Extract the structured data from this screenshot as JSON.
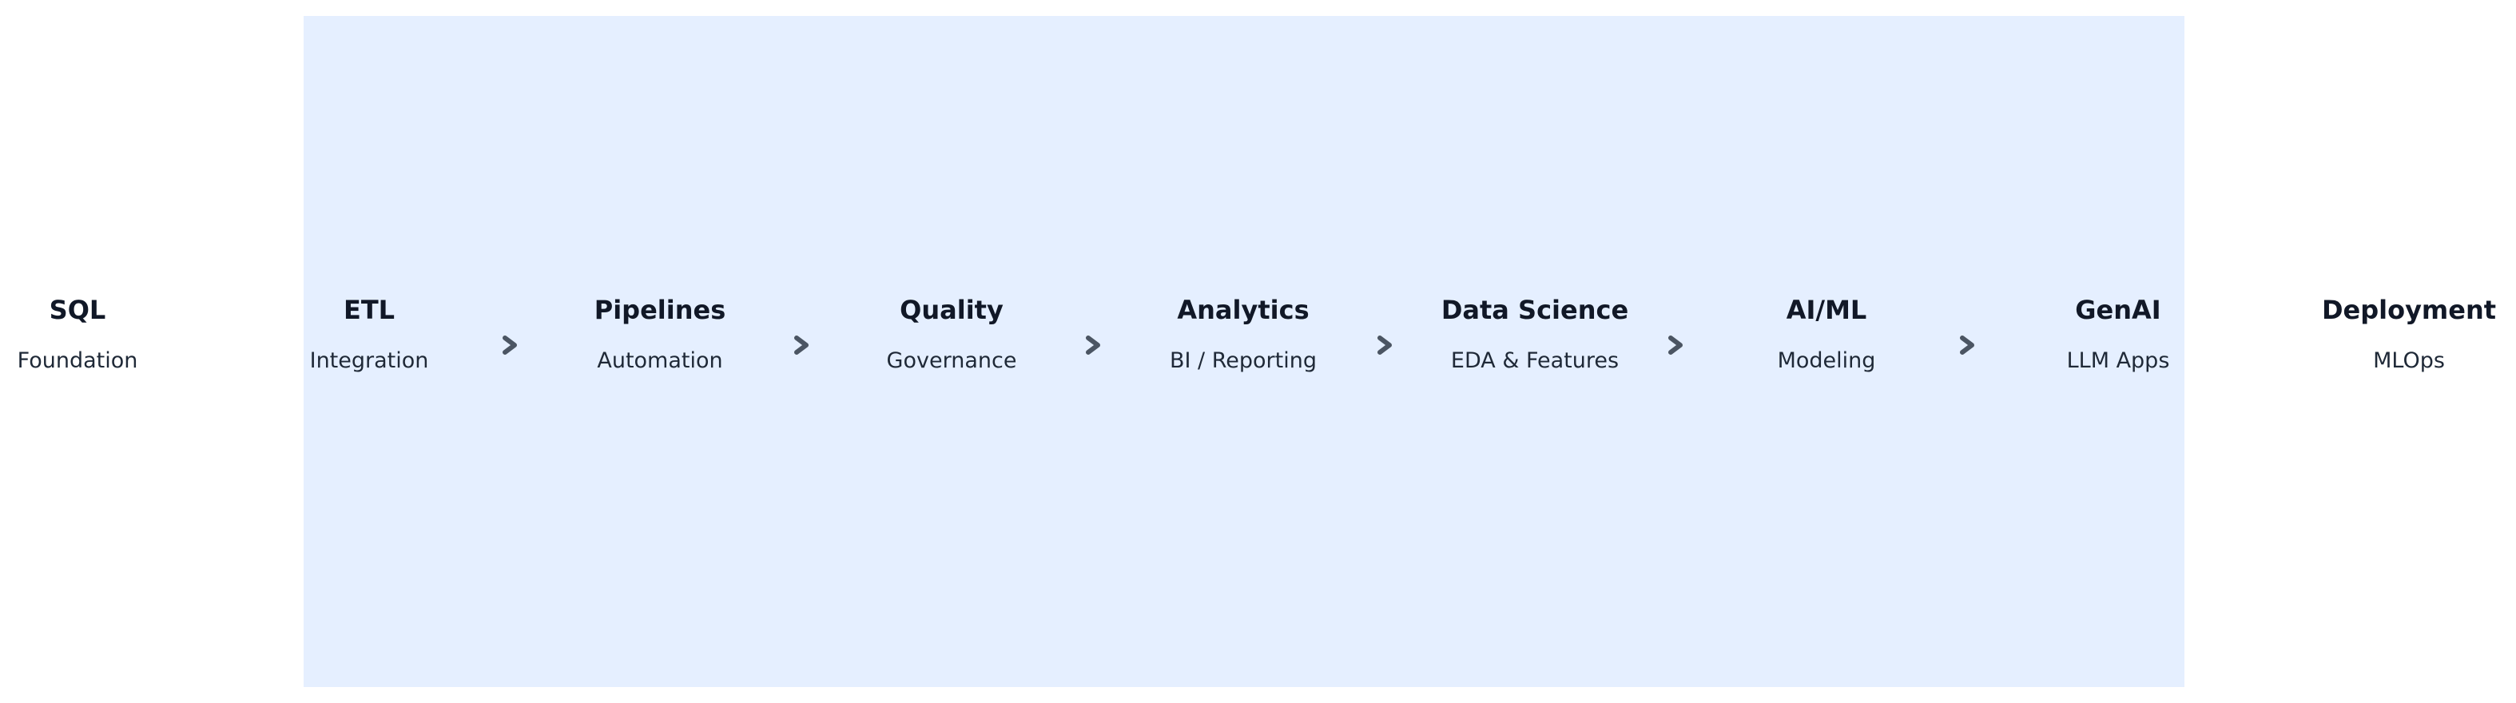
{
  "stages": [
    {
      "title": "SQL",
      "subtitle": "Foundation"
    },
    {
      "title": "ETL",
      "subtitle": "Integration"
    },
    {
      "title": "Pipelines",
      "subtitle": "Automation"
    },
    {
      "title": "Quality",
      "subtitle": "Governance"
    },
    {
      "title": "Analytics",
      "subtitle": "BI / Reporting"
    },
    {
      "title": "Data Science",
      "subtitle": "EDA & Features"
    },
    {
      "title": "AI/ML",
      "subtitle": "Modeling"
    },
    {
      "title": "GenAI",
      "subtitle": "LLM Apps"
    },
    {
      "title": "Deployment",
      "subtitle": "MLOps"
    }
  ],
  "arrows": [
    "chevron-right-icon",
    "chevron-right-icon",
    "chevron-right-icon",
    "chevron-right-icon",
    "chevron-right-icon",
    "chevron-right-icon"
  ],
  "colors": {
    "highlight_band": "#e5efff",
    "title_text": "#111827",
    "subtitle_text": "#1f2937",
    "arrow": "#4b5563"
  }
}
